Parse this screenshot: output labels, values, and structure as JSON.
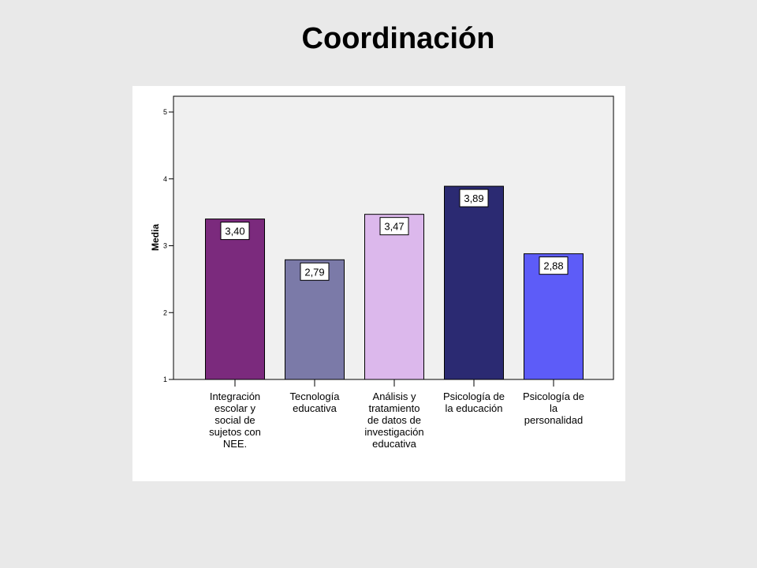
{
  "slide": {
    "title": "Coordinación"
  },
  "chart_data": {
    "type": "bar",
    "ylabel": "Media",
    "xlabel": "",
    "ylim": [
      1,
      5
    ],
    "yticks": [
      "1",
      "2",
      "3",
      "4",
      "5"
    ],
    "categories": [
      [
        "Integración",
        "escolar y",
        "social de",
        "sujetos con",
        "NEE."
      ],
      [
        "Tecnología",
        "educativa"
      ],
      [
        "Análisis y",
        "tratamiento",
        "de datos de",
        "investigación",
        "educativa"
      ],
      [
        "Psicología de",
        "la educación"
      ],
      [
        "Psicología de",
        "la",
        "personalidad"
      ]
    ],
    "values": [
      3.4,
      2.79,
      3.47,
      3.89,
      2.88
    ],
    "value_labels": [
      "3,40",
      "2,79",
      "3,47",
      "3,89",
      "2,88"
    ],
    "colors": [
      "#7b2a7d",
      "#7b7aa8",
      "#dcb8ec",
      "#2b2a72",
      "#5d5cf8"
    ],
    "plot_background": "#f0f0f0",
    "grid": false,
    "legend": "none"
  }
}
